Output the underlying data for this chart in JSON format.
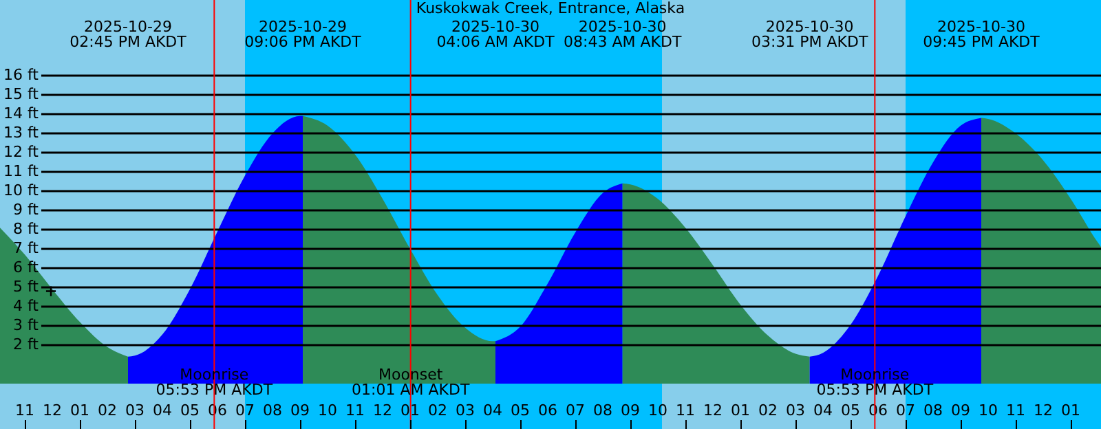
{
  "chart_data": {
    "type": "area",
    "title": "Kuskokwak Creek, Entrance, Alaska",
    "xlim": [
      "2025-10-29T10:06",
      "2025-10-31T02:06"
    ],
    "ylim": [
      -2.36,
      19.93
    ],
    "xticks": [
      {
        "value": "2025-10-29T11:00",
        "label": "11"
      },
      {
        "value": "2025-10-29T12:00",
        "label": "12"
      },
      {
        "value": "2025-10-29T13:00",
        "label": "01"
      },
      {
        "value": "2025-10-29T14:00",
        "label": "02"
      },
      {
        "value": "2025-10-29T15:00",
        "label": "03"
      },
      {
        "value": "2025-10-29T16:00",
        "label": "04"
      },
      {
        "value": "2025-10-29T17:00",
        "label": "05"
      },
      {
        "value": "2025-10-29T18:00",
        "label": "06"
      },
      {
        "value": "2025-10-29T19:00",
        "label": "07"
      },
      {
        "value": "2025-10-29T20:00",
        "label": "08"
      },
      {
        "value": "2025-10-29T21:00",
        "label": "09"
      },
      {
        "value": "2025-10-29T22:00",
        "label": "10"
      },
      {
        "value": "2025-10-29T23:00",
        "label": "11"
      },
      {
        "value": "2025-10-30T00:00",
        "label": "12"
      },
      {
        "value": "2025-10-30T01:00",
        "label": "01"
      },
      {
        "value": "2025-10-30T02:00",
        "label": "02"
      },
      {
        "value": "2025-10-30T03:00",
        "label": "03"
      },
      {
        "value": "2025-10-30T04:00",
        "label": "04"
      },
      {
        "value": "2025-10-30T05:00",
        "label": "05"
      },
      {
        "value": "2025-10-30T06:00",
        "label": "06"
      },
      {
        "value": "2025-10-30T07:00",
        "label": "07"
      },
      {
        "value": "2025-10-30T08:00",
        "label": "08"
      },
      {
        "value": "2025-10-30T09:00",
        "label": "09"
      },
      {
        "value": "2025-10-30T10:00",
        "label": "10"
      },
      {
        "value": "2025-10-30T11:00",
        "label": "11"
      },
      {
        "value": "2025-10-30T12:00",
        "label": "12"
      },
      {
        "value": "2025-10-30T13:00",
        "label": "01"
      },
      {
        "value": "2025-10-30T14:00",
        "label": "02"
      },
      {
        "value": "2025-10-30T15:00",
        "label": "03"
      },
      {
        "value": "2025-10-30T16:00",
        "label": "04"
      },
      {
        "value": "2025-10-30T17:00",
        "label": "05"
      },
      {
        "value": "2025-10-30T18:00",
        "label": "06"
      },
      {
        "value": "2025-10-30T19:00",
        "label": "07"
      },
      {
        "value": "2025-10-30T20:00",
        "label": "08"
      },
      {
        "value": "2025-10-30T21:00",
        "label": "09"
      },
      {
        "value": "2025-10-30T22:00",
        "label": "10"
      },
      {
        "value": "2025-10-30T23:00",
        "label": "11"
      },
      {
        "value": "2025-10-31T00:00",
        "label": "12"
      },
      {
        "value": "2025-10-31T01:00",
        "label": "01"
      }
    ],
    "yticks": [
      {
        "value": 2,
        "label": "2 ft"
      },
      {
        "value": 3,
        "label": "3 ft"
      },
      {
        "value": 4,
        "label": "4 ft"
      },
      {
        "value": 5,
        "label": "5 ft"
      },
      {
        "value": 6,
        "label": "6 ft"
      },
      {
        "value": 7,
        "label": "7 ft"
      },
      {
        "value": 8,
        "label": "8 ft"
      },
      {
        "value": 9,
        "label": "9 ft"
      },
      {
        "value": 10,
        "label": "10 ft"
      },
      {
        "value": 11,
        "label": "11 ft"
      },
      {
        "value": 12,
        "label": "12 ft"
      },
      {
        "value": 13,
        "label": "13 ft"
      },
      {
        "value": 14,
        "label": "14 ft"
      },
      {
        "value": 15,
        "label": "15 ft"
      },
      {
        "value": 16,
        "label": "16 ft"
      }
    ],
    "grid": "y",
    "bands": [
      {
        "axis": "x",
        "from": "2025-10-29T10:06",
        "to": "2025-10-29T19:00",
        "color": "#87ceeb"
      },
      {
        "axis": "x",
        "from": "2025-10-29T19:00",
        "to": "2025-10-30T10:09",
        "color": "#00bfff"
      },
      {
        "axis": "x",
        "from": "2025-10-30T10:09",
        "to": "2025-10-30T19:00",
        "color": "#87ceeb"
      },
      {
        "axis": "x",
        "from": "2025-10-30T19:00",
        "to": "2025-10-31T02:06",
        "color": "#00bfff"
      }
    ],
    "series": [
      {
        "color": "#2e8b57",
        "x": [
          "2025-10-29T10:06",
          "2025-10-29T11:00",
          "2025-10-29T12:00",
          "2025-10-29T13:00",
          "2025-10-29T14:00",
          "2025-10-29T14:45"
        ],
        "values": [
          8.1,
          6.7,
          4.9,
          3.2,
          1.9,
          1.4
        ]
      },
      {
        "color": "#0000ff",
        "x": [
          "2025-10-29T14:45",
          "2025-10-29T15:00",
          "2025-10-29T16:00",
          "2025-10-29T17:00",
          "2025-10-29T18:00",
          "2025-10-29T19:00",
          "2025-10-29T20:00",
          "2025-10-29T21:00",
          "2025-10-29T21:06"
        ],
        "values": [
          1.4,
          1.45,
          2.55,
          4.9,
          7.9,
          10.8,
          13.0,
          13.9,
          13.9
        ]
      },
      {
        "color": "#2e8b57",
        "x": [
          "2025-10-29T21:06",
          "2025-10-29T22:00",
          "2025-10-29T23:00",
          "2025-10-30T00:00",
          "2025-10-30T01:00",
          "2025-10-30T02:00",
          "2025-10-30T03:00",
          "2025-10-30T04:00",
          "2025-10-30T04:06"
        ],
        "values": [
          13.9,
          13.4,
          11.9,
          9.6,
          7.0,
          4.6,
          2.9,
          2.2,
          2.2
        ]
      },
      {
        "color": "#0000ff",
        "x": [
          "2025-10-30T04:06",
          "2025-10-30T05:00",
          "2025-10-30T06:00",
          "2025-10-30T07:00",
          "2025-10-30T08:00",
          "2025-10-30T08:43"
        ],
        "values": [
          2.2,
          2.95,
          5.2,
          7.85,
          9.9,
          10.4
        ]
      },
      {
        "color": "#2e8b57",
        "x": [
          "2025-10-30T08:43",
          "2025-10-30T09:00",
          "2025-10-30T10:00",
          "2025-10-30T11:00",
          "2025-10-30T12:00",
          "2025-10-30T13:00",
          "2025-10-30T14:00",
          "2025-10-30T15:00",
          "2025-10-30T15:31"
        ],
        "values": [
          10.4,
          10.35,
          9.6,
          8.1,
          6.15,
          4.1,
          2.5,
          1.55,
          1.4
        ]
      },
      {
        "color": "#0000ff",
        "x": [
          "2025-10-30T15:31",
          "2025-10-30T16:00",
          "2025-10-30T17:00",
          "2025-10-30T18:00",
          "2025-10-30T19:00",
          "2025-10-30T20:00",
          "2025-10-30T21:00",
          "2025-10-30T21:45"
        ],
        "values": [
          1.4,
          1.6,
          3.05,
          5.6,
          8.7,
          11.5,
          13.4,
          13.8
        ]
      },
      {
        "color": "#2e8b57",
        "x": [
          "2025-10-30T21:45",
          "2025-10-30T22:00",
          "2025-10-30T23:00",
          "2025-10-31T00:00",
          "2025-10-31T01:00",
          "2025-10-31T02:00",
          "2025-10-31T02:06"
        ],
        "values": [
          13.8,
          13.75,
          13.0,
          11.6,
          9.6,
          7.3,
          7.1
        ]
      },
      {
        "type": "scatter",
        "color": "#000000",
        "marker": "cross",
        "x": [
          "2025-10-29T11:57"
        ],
        "values": [
          4.8
        ]
      }
    ],
    "ref_lines": [
      {
        "axis": "x",
        "value": "2025-10-29T17:53",
        "label": "Moonrise\n05:53 PM AKDT",
        "color": "#ff0000"
      },
      {
        "axis": "x",
        "value": "2025-10-30T01:01",
        "label": "Moonset\n01:01 AM AKDT",
        "color": "#ff0000"
      },
      {
        "axis": "x",
        "value": "2025-10-30T17:53",
        "label": "Moonrise\n05:53 PM AKDT",
        "color": "#ff0000"
      }
    ],
    "annotations": [
      "2025-10-29\n02:45 PM AKDT",
      "2025-10-29\n09:06 PM AKDT",
      "2025-10-30\n04:06 AM AKDT",
      "2025-10-30\n08:43 AM AKDT",
      "2025-10-30\n03:31 PM AKDT",
      "2025-10-30\n09:45 PM AKDT"
    ]
  }
}
